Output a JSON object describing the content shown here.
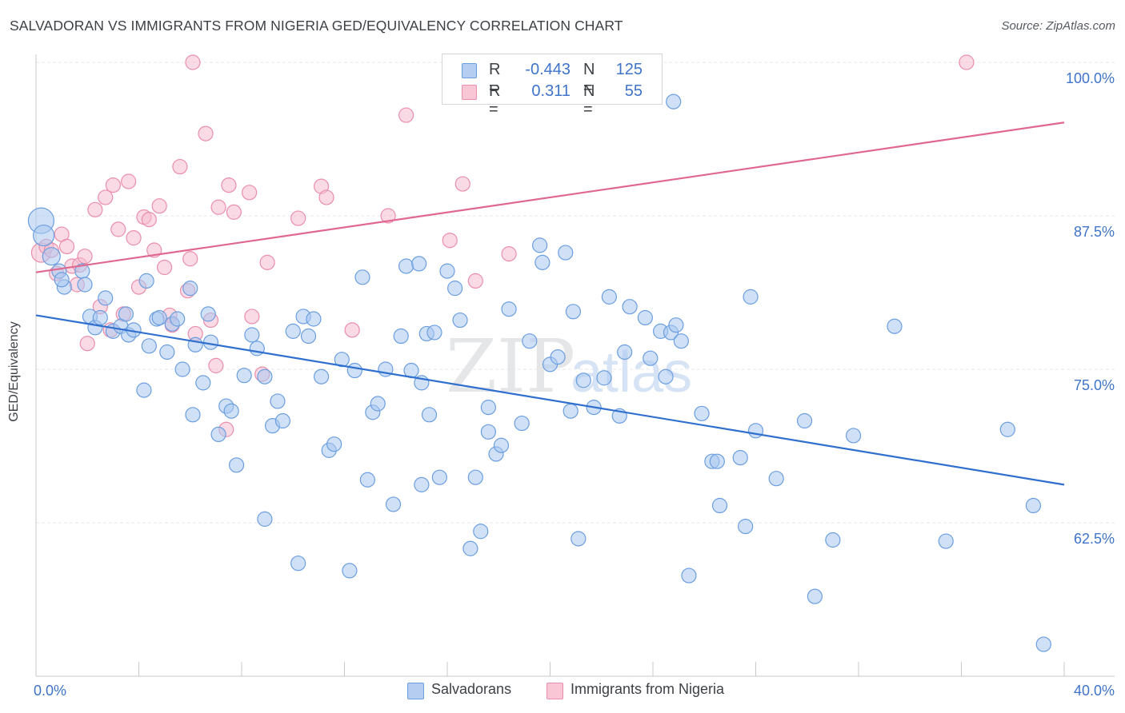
{
  "title": "SALVADORAN VS IMMIGRANTS FROM NIGERIA GED/EQUIVALENCY CORRELATION CHART",
  "source": "Source: ZipAtlas.com",
  "watermark": {
    "zip": "ZIP",
    "atlas": "atlas"
  },
  "legend": {
    "rows": [
      {
        "r_label": "R =",
        "r_value": "-0.443",
        "n_label": "N =",
        "n_value": "125"
      },
      {
        "r_label": "R =",
        "r_value": "0.311",
        "n_label": "N =",
        "n_value": "55"
      }
    ]
  },
  "bottom_legend": {
    "series_0": "Salvadorans",
    "series_1": "Immigrants from Nigeria"
  },
  "colors": {
    "blue_fill": "#a9c8f0",
    "blue_stroke": "#6b9ee0",
    "blue_line": "#2f6fce",
    "pink_fill": "#f6bccd",
    "pink_stroke": "#ea8eab",
    "pink_line": "#e0688f",
    "tick_label": "#3f74c9",
    "grid": "#e6e7ea",
    "axis": "#c7c9cc"
  },
  "chart_data": {
    "type": "scatter",
    "title": "SALVADORAN VS IMMIGRANTS FROM NIGERIA GED/EQUIVALENCY CORRELATION CHART",
    "xlabel": "",
    "ylabel": "GED/Equivalency",
    "xlim": [
      0,
      40
    ],
    "ylim": [
      51.5,
      102
    ],
    "x_tick_labels": [
      "0.0%",
      "40.0%"
    ],
    "y_ticks": [
      62.5,
      75.0,
      87.5,
      100.0
    ],
    "y_tick_labels": [
      "62.5%",
      "75.0%",
      "87.5%",
      "100.0%"
    ],
    "grid": true,
    "legend_position": "top-center",
    "series": [
      {
        "name": "Salvadorans",
        "r": -0.443,
        "n": 125,
        "trend": {
          "x": [
            0,
            40
          ],
          "y": [
            79.4,
            65.6
          ]
        },
        "points": [
          [
            0.2,
            87.1
          ],
          [
            0.3,
            85.9
          ],
          [
            0.6,
            84.2
          ],
          [
            0.9,
            83.0
          ],
          [
            1.1,
            81.7
          ],
          [
            1.0,
            82.3
          ],
          [
            1.8,
            83.0
          ],
          [
            1.9,
            81.9
          ],
          [
            2.7,
            80.8
          ],
          [
            2.1,
            79.3
          ],
          [
            2.3,
            78.4
          ],
          [
            2.5,
            79.2
          ],
          [
            3.0,
            78.1
          ],
          [
            3.3,
            78.5
          ],
          [
            3.5,
            79.5
          ],
          [
            3.6,
            77.8
          ],
          [
            3.8,
            78.2
          ],
          [
            4.2,
            73.3
          ],
          [
            4.3,
            82.2
          ],
          [
            4.4,
            76.9
          ],
          [
            4.7,
            79.1
          ],
          [
            4.8,
            79.2
          ],
          [
            5.1,
            76.4
          ],
          [
            5.3,
            78.7
          ],
          [
            5.5,
            79.1
          ],
          [
            5.7,
            75.0
          ],
          [
            6.0,
            81.6
          ],
          [
            6.1,
            71.3
          ],
          [
            6.2,
            77.0
          ],
          [
            6.5,
            73.9
          ],
          [
            6.7,
            79.5
          ],
          [
            6.8,
            77.2
          ],
          [
            7.1,
            69.7
          ],
          [
            7.4,
            72.0
          ],
          [
            7.6,
            71.6
          ],
          [
            7.8,
            67.2
          ],
          [
            8.1,
            74.5
          ],
          [
            8.4,
            77.8
          ],
          [
            8.6,
            76.7
          ],
          [
            8.9,
            74.4
          ],
          [
            8.9,
            62.8
          ],
          [
            9.2,
            70.4
          ],
          [
            9.4,
            72.4
          ],
          [
            9.6,
            70.8
          ],
          [
            10.0,
            78.1
          ],
          [
            10.2,
            59.2
          ],
          [
            10.4,
            79.3
          ],
          [
            10.6,
            77.7
          ],
          [
            10.8,
            79.1
          ],
          [
            11.1,
            74.4
          ],
          [
            11.4,
            68.4
          ],
          [
            11.6,
            68.9
          ],
          [
            11.9,
            75.8
          ],
          [
            12.2,
            58.6
          ],
          [
            12.4,
            74.9
          ],
          [
            12.7,
            82.5
          ],
          [
            12.9,
            66.0
          ],
          [
            13.1,
            71.5
          ],
          [
            13.3,
            72.2
          ],
          [
            13.6,
            75.0
          ],
          [
            13.9,
            64.0
          ],
          [
            14.2,
            77.7
          ],
          [
            14.4,
            83.4
          ],
          [
            14.6,
            74.9
          ],
          [
            14.9,
            83.6
          ],
          [
            15.0,
            65.6
          ],
          [
            15.2,
            77.9
          ],
          [
            15.5,
            78.0
          ],
          [
            15.0,
            73.9
          ],
          [
            15.3,
            71.3
          ],
          [
            15.7,
            66.2
          ],
          [
            16.0,
            83.0
          ],
          [
            16.3,
            81.6
          ],
          [
            16.5,
            79.0
          ],
          [
            16.9,
            60.4
          ],
          [
            17.1,
            66.2
          ],
          [
            17.3,
            61.8
          ],
          [
            17.6,
            71.9
          ],
          [
            17.6,
            69.9
          ],
          [
            17.9,
            68.1
          ],
          [
            18.1,
            68.8
          ],
          [
            18.4,
            79.9
          ],
          [
            18.9,
            70.6
          ],
          [
            19.2,
            77.3
          ],
          [
            19.6,
            85.1
          ],
          [
            19.7,
            83.7
          ],
          [
            20.0,
            75.4
          ],
          [
            20.3,
            76.0
          ],
          [
            20.6,
            84.5
          ],
          [
            20.8,
            71.6
          ],
          [
            20.9,
            79.7
          ],
          [
            21.1,
            61.2
          ],
          [
            21.3,
            74.1
          ],
          [
            21.7,
            71.9
          ],
          [
            22.1,
            74.3
          ],
          [
            22.3,
            80.9
          ],
          [
            22.7,
            71.2
          ],
          [
            22.9,
            76.4
          ],
          [
            23.1,
            80.1
          ],
          [
            23.7,
            79.2
          ],
          [
            23.9,
            75.9
          ],
          [
            24.3,
            78.1
          ],
          [
            24.5,
            74.4
          ],
          [
            24.7,
            78.0
          ],
          [
            24.9,
            78.6
          ],
          [
            25.1,
            77.3
          ],
          [
            24.8,
            96.8
          ],
          [
            25.4,
            58.2
          ],
          [
            25.9,
            71.4
          ],
          [
            26.3,
            67.5
          ],
          [
            26.6,
            63.9
          ],
          [
            26.5,
            67.5
          ],
          [
            27.4,
            67.8
          ],
          [
            27.6,
            62.2
          ],
          [
            27.8,
            80.9
          ],
          [
            28.0,
            70.0
          ],
          [
            28.8,
            66.1
          ],
          [
            29.9,
            70.8
          ],
          [
            30.3,
            56.5
          ],
          [
            31.0,
            61.1
          ],
          [
            31.8,
            69.6
          ],
          [
            33.4,
            78.5
          ],
          [
            35.4,
            61.0
          ],
          [
            37.8,
            70.1
          ],
          [
            38.8,
            63.9
          ],
          [
            39.2,
            52.6
          ]
        ]
      },
      {
        "name": "Immigrants from Nigeria",
        "r": 0.311,
        "n": 55,
        "trend": {
          "x": [
            0,
            40
          ],
          "y": [
            82.9,
            95.1
          ]
        },
        "points": [
          [
            0.2,
            84.5
          ],
          [
            0.4,
            85.0
          ],
          [
            0.6,
            84.7
          ],
          [
            0.8,
            82.8
          ],
          [
            1.0,
            86.0
          ],
          [
            1.2,
            85.0
          ],
          [
            1.4,
            83.4
          ],
          [
            1.6,
            81.9
          ],
          [
            1.7,
            83.5
          ],
          [
            1.9,
            84.2
          ],
          [
            2.0,
            77.1
          ],
          [
            2.3,
            88.0
          ],
          [
            2.5,
            80.1
          ],
          [
            2.7,
            89.0
          ],
          [
            2.9,
            78.2
          ],
          [
            3.0,
            90.0
          ],
          [
            3.2,
            86.4
          ],
          [
            3.4,
            79.5
          ],
          [
            3.6,
            90.3
          ],
          [
            3.8,
            85.7
          ],
          [
            4.0,
            81.7
          ],
          [
            4.2,
            87.4
          ],
          [
            4.4,
            87.2
          ],
          [
            4.6,
            84.7
          ],
          [
            4.8,
            88.3
          ],
          [
            5.0,
            83.3
          ],
          [
            5.2,
            79.4
          ],
          [
            5.3,
            78.6
          ],
          [
            5.6,
            91.5
          ],
          [
            5.9,
            81.4
          ],
          [
            6.0,
            84.0
          ],
          [
            6.2,
            77.9
          ],
          [
            6.1,
            100.0
          ],
          [
            6.6,
            94.2
          ],
          [
            6.8,
            79.0
          ],
          [
            7.0,
            75.3
          ],
          [
            7.1,
            88.2
          ],
          [
            7.4,
            70.1
          ],
          [
            7.5,
            90.0
          ],
          [
            7.7,
            87.8
          ],
          [
            8.3,
            89.4
          ],
          [
            8.4,
            79.3
          ],
          [
            8.8,
            74.6
          ],
          [
            9.0,
            83.7
          ],
          [
            10.2,
            87.3
          ],
          [
            11.1,
            89.9
          ],
          [
            11.3,
            89.0
          ],
          [
            12.3,
            78.2
          ],
          [
            13.7,
            87.5
          ],
          [
            14.4,
            95.7
          ],
          [
            16.1,
            85.5
          ],
          [
            16.6,
            90.1
          ],
          [
            17.1,
            82.2
          ],
          [
            18.4,
            84.4
          ],
          [
            36.2,
            100.0
          ]
        ]
      }
    ]
  }
}
